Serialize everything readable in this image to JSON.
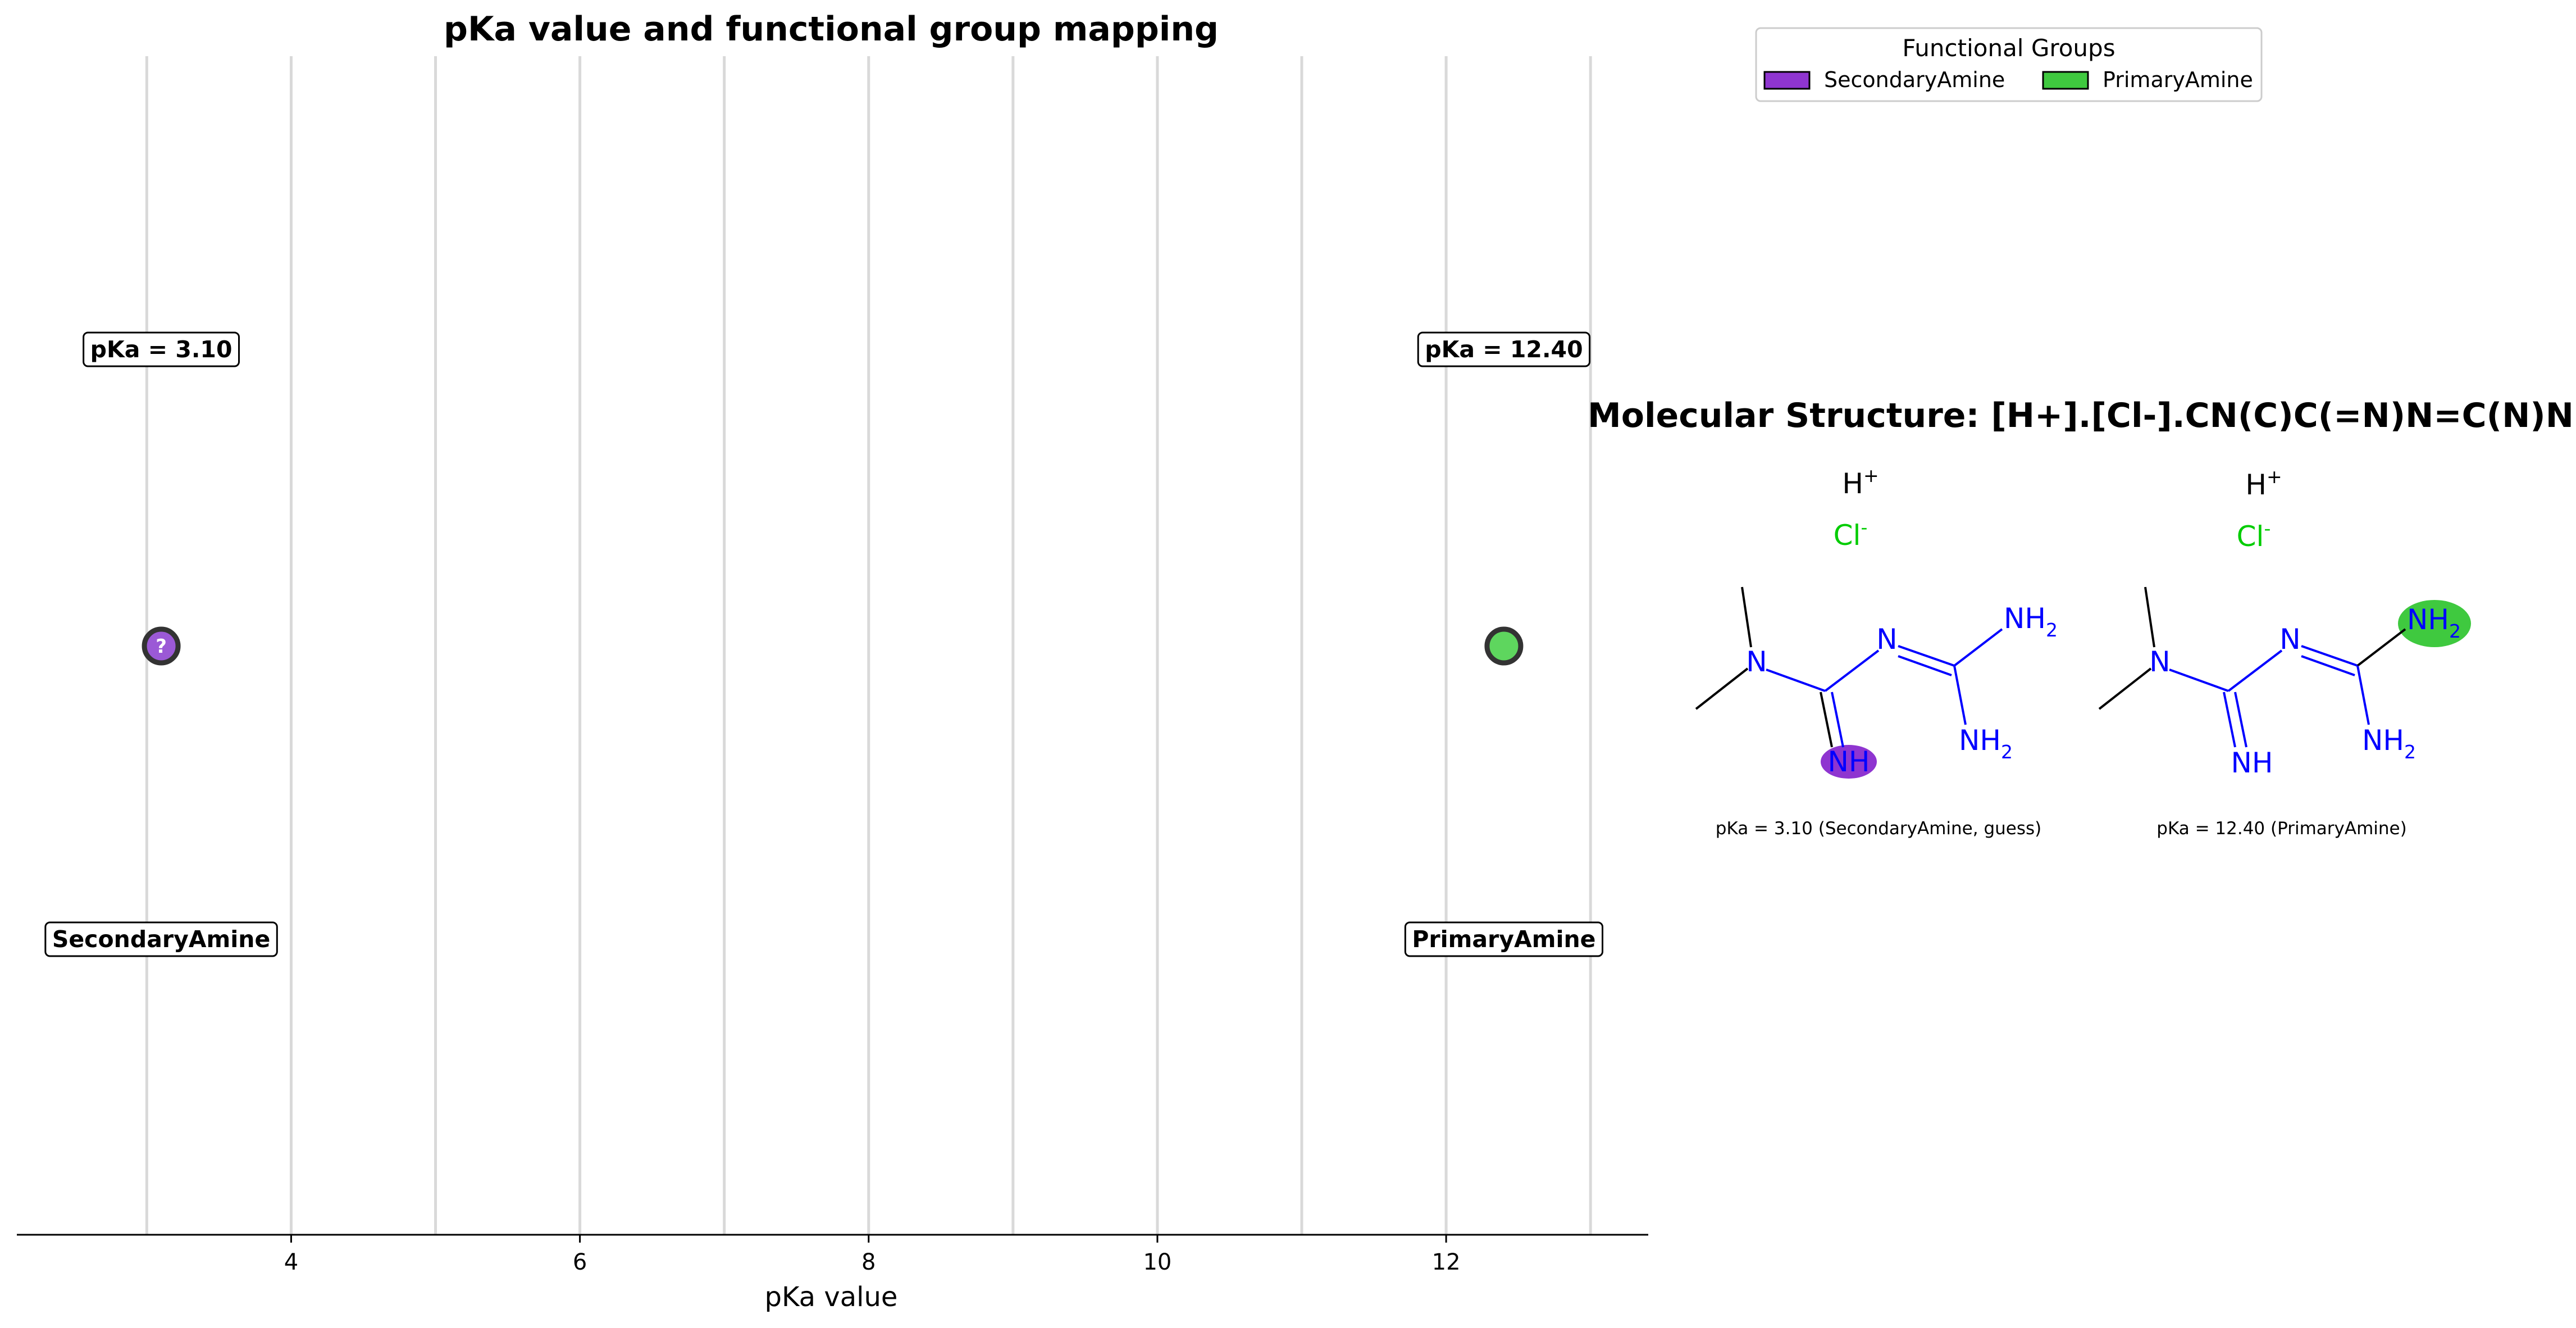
{
  "chart_data": {
    "type": "scatter",
    "title": "pKa value and functional group mapping",
    "xlabel": "pKa value",
    "ylabel": "",
    "xlim": [
      2.1,
      13.4
    ],
    "ticks": [
      4,
      6,
      8,
      10,
      12
    ],
    "tick_labels": [
      "4",
      "6",
      "8",
      "10",
      "12"
    ],
    "gridlines_x": [
      3,
      4,
      5,
      6,
      7,
      8,
      9,
      10,
      11,
      12,
      13
    ],
    "grid": true,
    "points": [
      {
        "x": 3.1,
        "group": "SecondaryAmine",
        "value_label": "pKa = 3.10",
        "group_label": "SecondaryAmine",
        "marker": "?",
        "color": "#9b59d6"
      },
      {
        "x": 12.4,
        "group": "PrimaryAmine",
        "value_label": "pKa = 12.40",
        "group_label": "PrimaryAmine",
        "marker": "",
        "color": "#5ed65e"
      }
    ]
  },
  "legend": {
    "title": "Functional Groups",
    "placement": "top-right",
    "items": [
      {
        "label": "SecondaryAmine",
        "color": "#8f35d0"
      },
      {
        "label": "PrimaryAmine",
        "color": "#3fc93f"
      }
    ]
  },
  "structure": {
    "title": "Molecular Structure: [H+].[Cl-].CN(C)C(=N)N=C(N)N",
    "hydrogen": "H",
    "hydrogen_charge": "+",
    "chloride": "Cl",
    "chloride_charge": "-",
    "atom_n": "N",
    "atom_nh": "NH",
    "atom_nh2": "NH",
    "sub_2": "2",
    "panels": [
      {
        "caption": "pKa = 3.10 (SecondaryAmine, guess)",
        "highlight": "SecondaryAmine",
        "highlight_color": "#8f35d0"
      },
      {
        "caption": "pKa = 12.40 (PrimaryAmine)",
        "highlight": "PrimaryAmine",
        "highlight_color": "#3fc93f"
      }
    ],
    "colors": {
      "nitrogen": "#0000ff",
      "chlorine": "#00cc00",
      "bond": "#000000"
    }
  }
}
